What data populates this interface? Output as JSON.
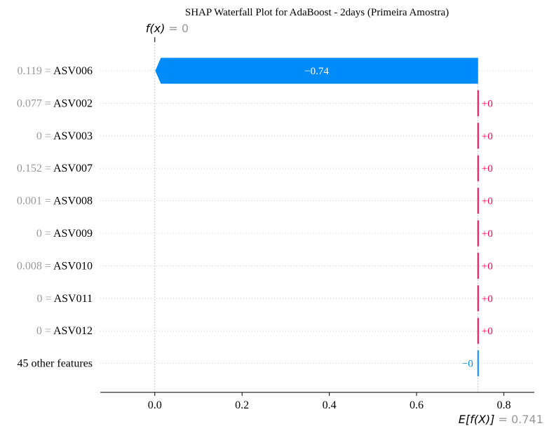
{
  "chart_data": {
    "type": "waterfall",
    "title": "SHAP Waterfall Plot for AdaBoost - 2days (Primeira Amostra)",
    "fx_label": "f(x)",
    "fx_value_text": "= 0",
    "fx": 0.0,
    "efx_label": "E[f(X)]",
    "efx_value_text": "= 0.741",
    "base_value": 0.741,
    "xlim": [
      -0.125,
      0.87
    ],
    "xticks": [
      0.0,
      0.2,
      0.4,
      0.6,
      0.8
    ],
    "xtick_labels": [
      "0.0",
      "0.2",
      "0.4",
      "0.6",
      "0.8"
    ],
    "colors": {
      "positive": "#ff0051",
      "negative": "#008bfb",
      "feature_value": "#999999",
      "text": "#000000",
      "grid": "#cccccc"
    },
    "features": [
      {
        "value": "0.119 =",
        "name": "ASV006",
        "shap": -0.74,
        "label": "−0.74"
      },
      {
        "value": "0.077 =",
        "name": "ASV002",
        "shap": 0.0,
        "label": "+0"
      },
      {
        "value": "0 =",
        "name": "ASV003",
        "shap": 0.0,
        "label": "+0"
      },
      {
        "value": "0.152 =",
        "name": "ASV007",
        "shap": 0.0,
        "label": "+0"
      },
      {
        "value": "0.001 =",
        "name": "ASV008",
        "shap": 0.0,
        "label": "+0"
      },
      {
        "value": "0 =",
        "name": "ASV009",
        "shap": 0.0,
        "label": "+0"
      },
      {
        "value": "0.008 =",
        "name": "ASV010",
        "shap": 0.0,
        "label": "+0"
      },
      {
        "value": "0 =",
        "name": "ASV011",
        "shap": 0.0,
        "label": "+0"
      },
      {
        "value": "0 =",
        "name": "ASV012",
        "shap": 0.0,
        "label": "+0"
      },
      {
        "value": "",
        "name": "45 other features",
        "shap": -0.0,
        "label": "−0"
      }
    ]
  }
}
